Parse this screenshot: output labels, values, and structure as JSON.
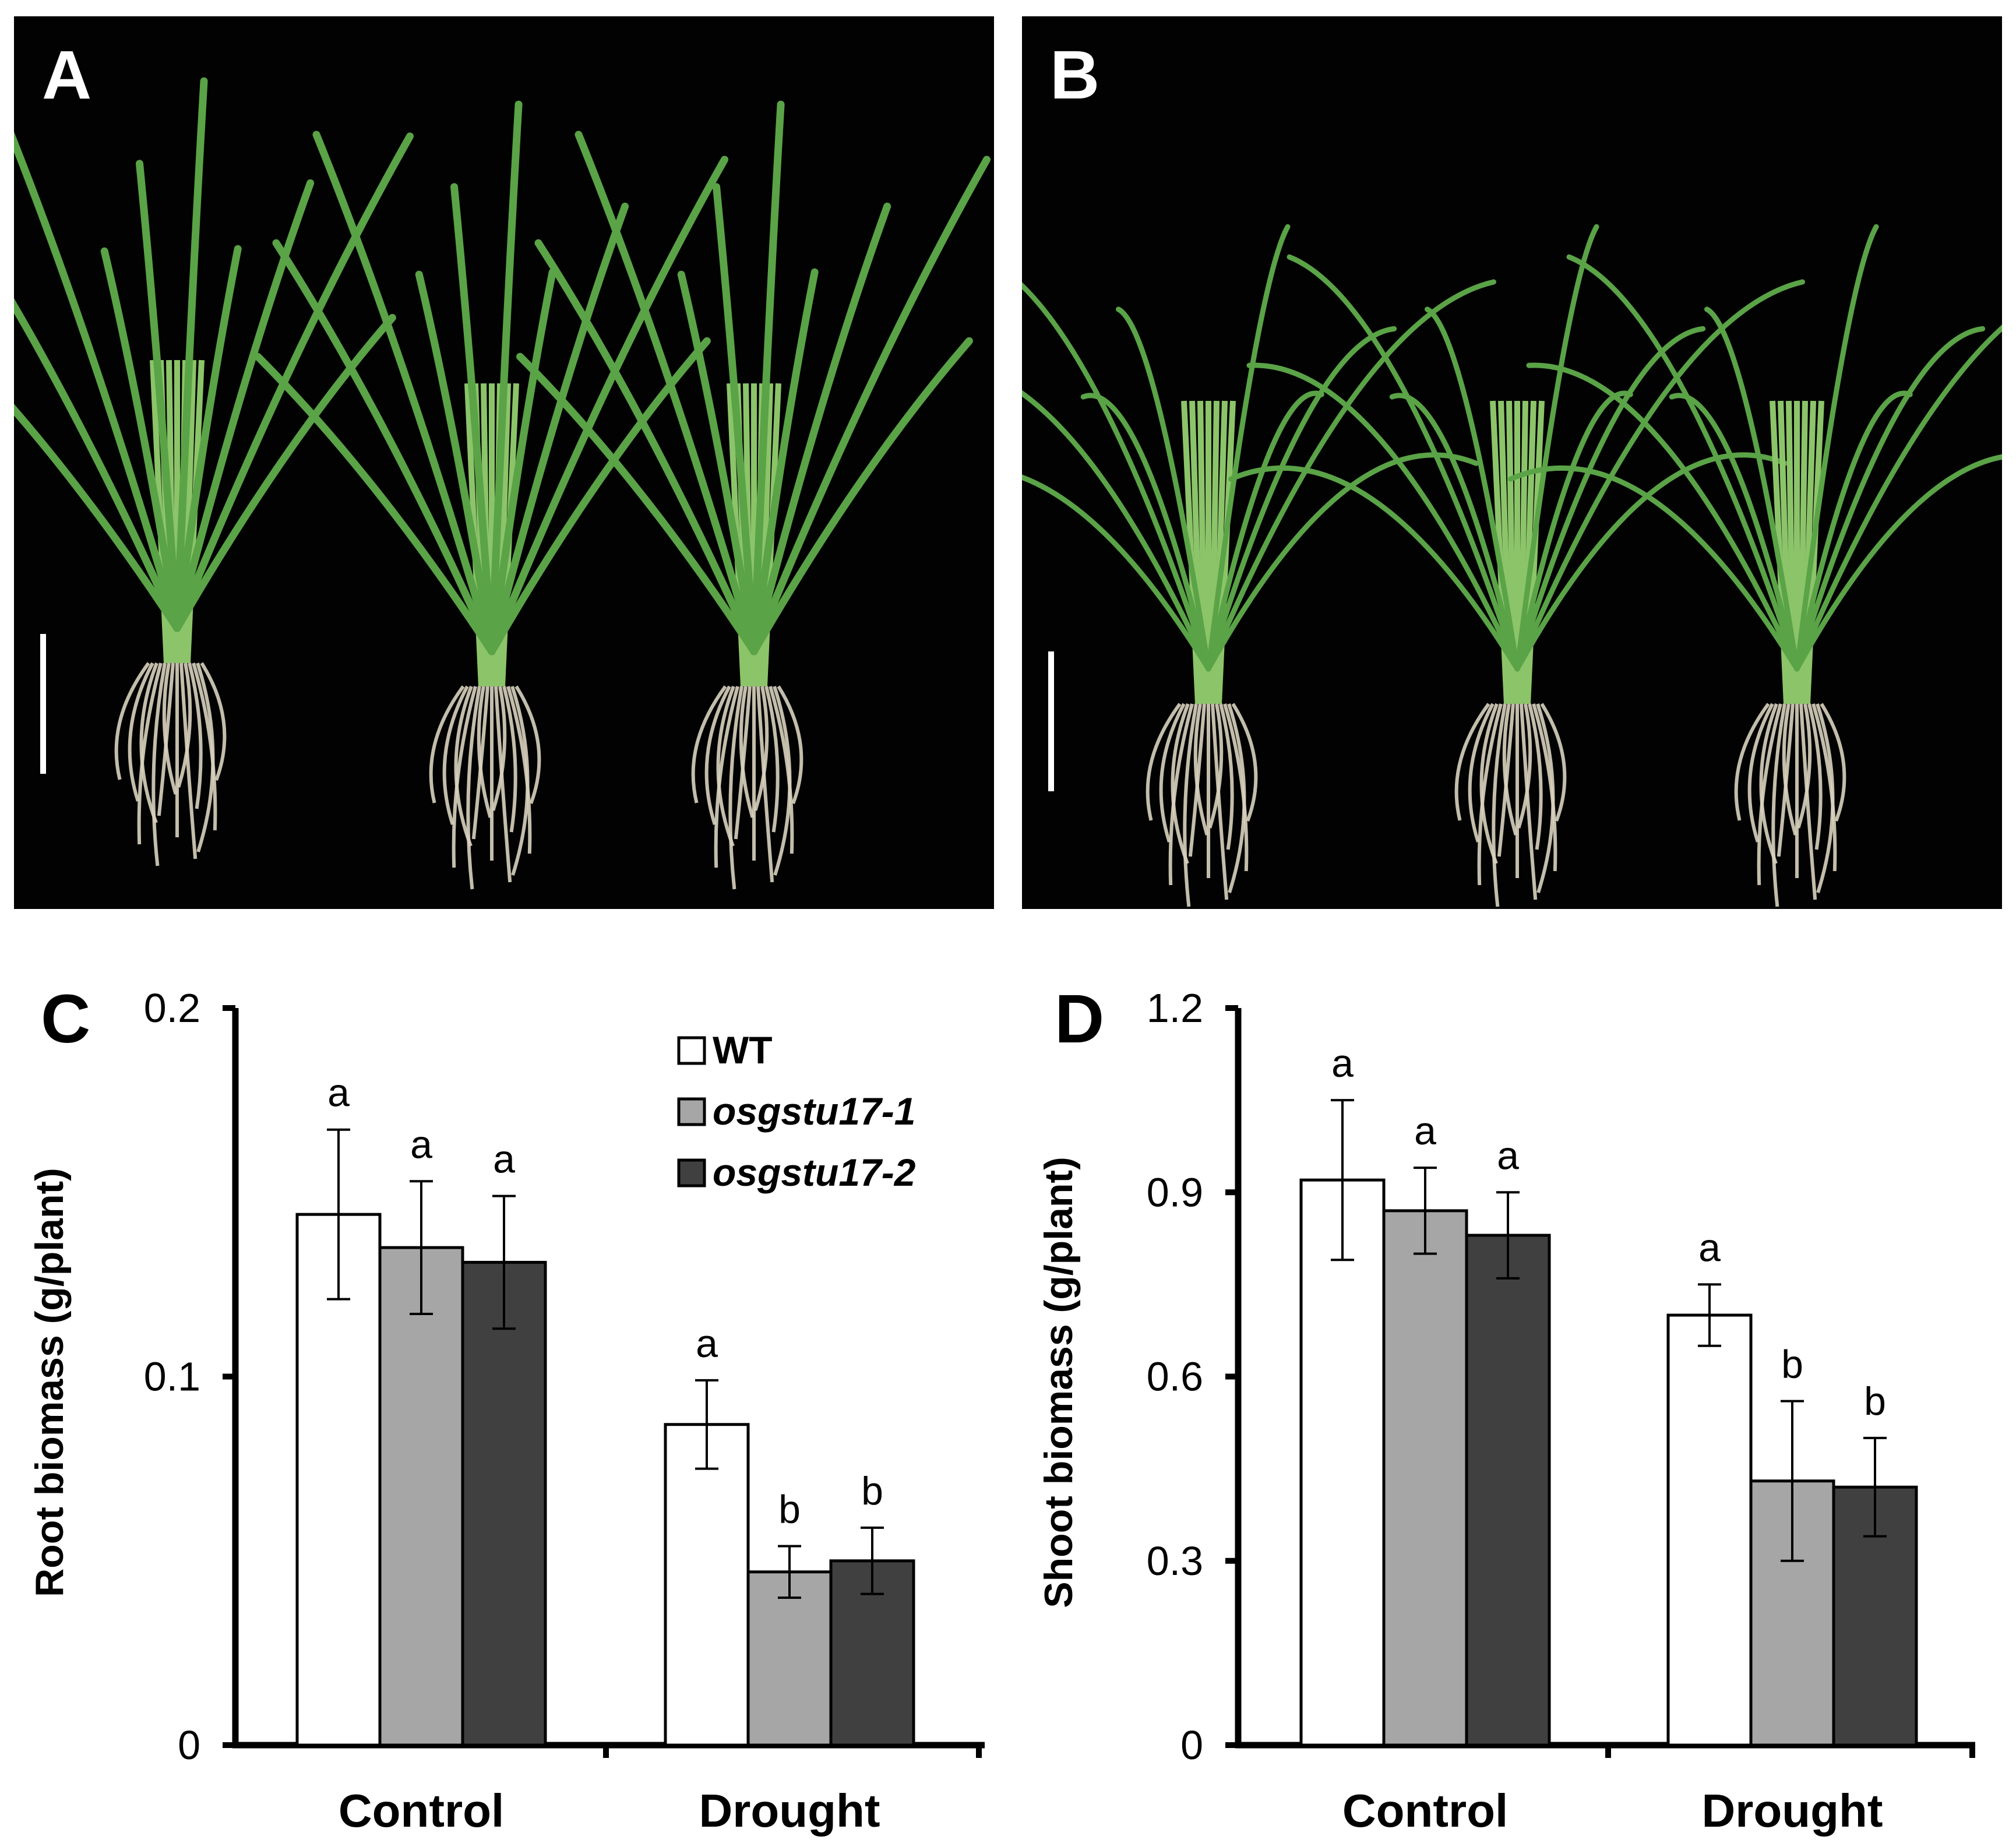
{
  "figure": {
    "panels": {
      "A": {
        "letter": "A",
        "photo_caption": "Control plants: WT, osgstu17-1, osgstu17-2 with scale bar"
      },
      "B": {
        "letter": "B",
        "photo_caption": "Drought plants: WT, osgstu17-1, osgstu17-2 with scale bar"
      }
    }
  },
  "colors": {
    "wt_fill": "#ffffff",
    "mutant1_fill": "#a6a6a6",
    "mutant2_fill": "#404040",
    "axis": "#000000",
    "photo_background": "#020202",
    "leaf": "#5aa347",
    "root": "#d8d2be"
  },
  "chart_data": [
    {
      "panel": "C",
      "type": "bar",
      "categories": [
        "Control",
        "Drought"
      ],
      "ylabel": "Root biomass (g/plant)",
      "ylim": [
        0,
        0.2
      ],
      "yticks": [
        "0",
        "0.1",
        "0.2"
      ],
      "ytick_values": [
        0,
        0.1,
        0.2
      ],
      "legend_position": "top-right",
      "series": [
        {
          "name": "WT",
          "values": [
            0.144,
            0.087
          ],
          "errors": [
            0.023,
            0.012
          ],
          "letters": [
            "a",
            "a"
          ]
        },
        {
          "name": "osgstu17-1",
          "values": [
            0.135,
            0.047
          ],
          "errors": [
            0.018,
            0.007
          ],
          "letters": [
            "a",
            "b"
          ]
        },
        {
          "name": "osgstu17-2",
          "values": [
            0.131,
            0.05
          ],
          "errors": [
            0.018,
            0.009
          ],
          "letters": [
            "a",
            "b"
          ]
        }
      ]
    },
    {
      "panel": "D",
      "type": "bar",
      "categories": [
        "Control",
        "Drought"
      ],
      "ylabel": "Shoot biomass (g/plant)",
      "ylim": [
        0,
        1.2
      ],
      "yticks": [
        "0",
        "0.3",
        "0.6",
        "0.9",
        "1.2"
      ],
      "ytick_values": [
        0,
        0.3,
        0.6,
        0.9,
        1.2
      ],
      "series": [
        {
          "name": "WT",
          "values": [
            0.92,
            0.7
          ],
          "errors": [
            0.13,
            0.05
          ],
          "letters": [
            "a",
            "a"
          ]
        },
        {
          "name": "osgstu17-1",
          "values": [
            0.87,
            0.43
          ],
          "errors": [
            0.07,
            0.13
          ],
          "letters": [
            "a",
            "b"
          ]
        },
        {
          "name": "osgstu17-2",
          "values": [
            0.83,
            0.42
          ],
          "errors": [
            0.07,
            0.08
          ],
          "letters": [
            "a",
            "b"
          ]
        }
      ]
    }
  ]
}
